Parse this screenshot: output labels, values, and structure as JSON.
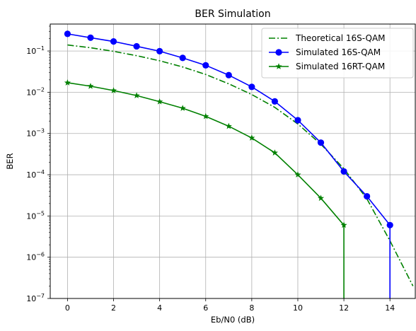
{
  "chart_data": {
    "type": "line",
    "title": "BER Simulation",
    "xlabel": "Eb/N0 (dB)",
    "ylabel": "BER",
    "xlim": [
      -0.75,
      15.1
    ],
    "ylim": [
      1e-07,
      0.45
    ],
    "yscale": "log",
    "grid": true,
    "legend_position": "top-right",
    "x_ticks": [
      0,
      2,
      4,
      6,
      8,
      10,
      12,
      14
    ],
    "x_tick_labels": [
      "0",
      "2",
      "4",
      "6",
      "8",
      "10",
      "12",
      "14"
    ],
    "y_ticks": [
      1e-07,
      1e-06,
      1e-05,
      0.0001,
      0.001,
      0.01,
      0.1
    ],
    "y_tick_labels": [
      {
        "base": "10",
        "exp": "−7"
      },
      {
        "base": "10",
        "exp": "−6"
      },
      {
        "base": "10",
        "exp": "−5"
      },
      {
        "base": "10",
        "exp": "−4"
      },
      {
        "base": "10",
        "exp": "−3"
      },
      {
        "base": "10",
        "exp": "−2"
      },
      {
        "base": "10",
        "exp": "−1"
      }
    ],
    "series": [
      {
        "name": "Theoretical 16S-QAM",
        "color": "#008000",
        "style": "dashdot",
        "marker": "none",
        "x": [
          0,
          1,
          2,
          3,
          4,
          5,
          6,
          7,
          8,
          9,
          10,
          11,
          12,
          13,
          14,
          15
        ],
        "values": [
          0.14,
          0.12,
          0.098,
          0.077,
          0.058,
          0.041,
          0.027,
          0.016,
          0.0088,
          0.0043,
          0.0017,
          0.00055,
          0.00014,
          2.6e-05,
          2.5e-06,
          2e-07
        ]
      },
      {
        "name": "Simulated 16S-QAM",
        "color": "#0000ff",
        "style": "solid",
        "marker": "circle",
        "x": [
          0,
          1,
          2,
          3,
          4,
          5,
          6,
          7,
          8,
          9,
          10,
          11,
          12,
          13,
          14
        ],
        "values": [
          0.26,
          0.21,
          0.17,
          0.13,
          0.099,
          0.068,
          0.045,
          0.026,
          0.0135,
          0.006,
          0.0021,
          0.0006,
          0.00012,
          3e-05,
          6e-06
        ],
        "drop_after_last": true
      },
      {
        "name": "Simulated 16RT-QAM",
        "color": "#008000",
        "style": "solid",
        "marker": "star",
        "x": [
          0,
          1,
          2,
          3,
          4,
          5,
          6,
          7,
          8,
          9,
          10,
          11,
          12
        ],
        "values": [
          0.017,
          0.014,
          0.011,
          0.0083,
          0.0059,
          0.0041,
          0.0026,
          0.0015,
          0.00078,
          0.00034,
          0.0001,
          2.7e-05,
          6e-06
        ],
        "drop_after_last": true
      }
    ]
  }
}
